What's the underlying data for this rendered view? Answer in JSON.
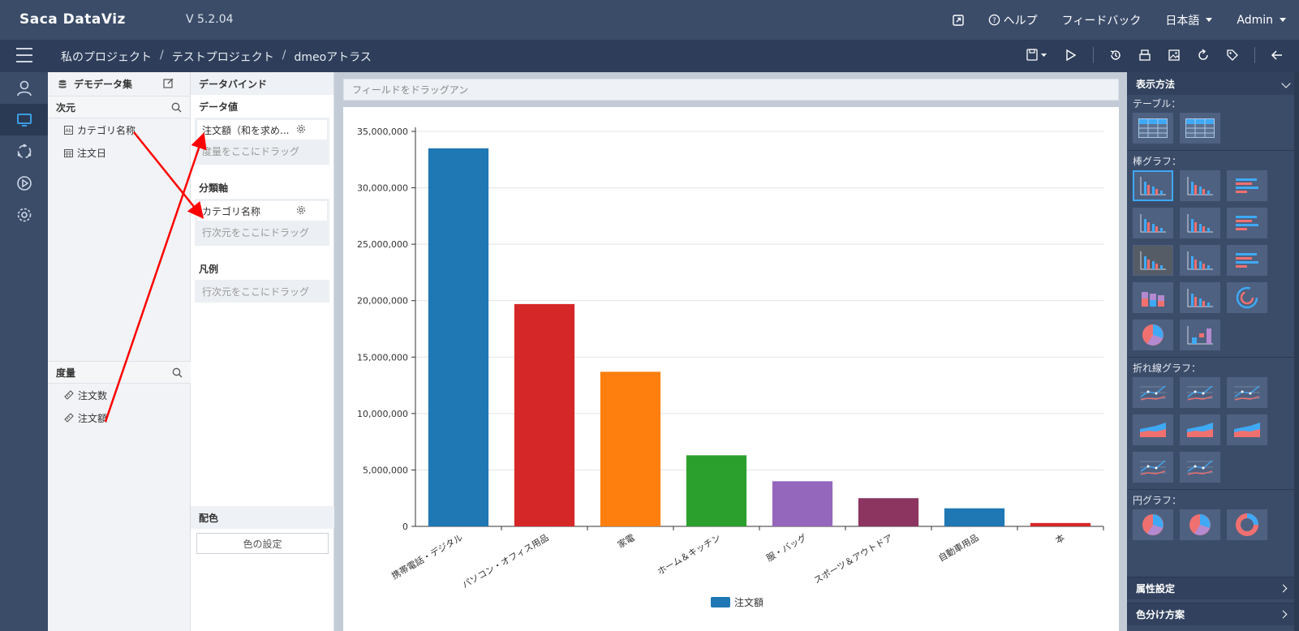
{
  "app": {
    "logo": "Saca DataViz",
    "version": "V 5.2.04",
    "topnav": {
      "help": "ヘルプ",
      "feedback": "フィードバック",
      "language": "日本語",
      "user": "Admin"
    }
  },
  "breadcrumb": [
    "私のプロジェクト",
    "テストプロジェクト",
    "dmeoアトラス"
  ],
  "breadcrumb_sep": "/",
  "dataset": {
    "title": "デモデータ集",
    "dimensions_label": "次元",
    "dimensions": [
      "カテゴリ名称",
      "注文日"
    ],
    "measures_label": "度量",
    "measures": [
      "注文数",
      "注文額"
    ]
  },
  "bind": {
    "title": "データバインド",
    "values_label": "データ値",
    "values_pill": "注文額（和を求め...",
    "values_hint": "度量をここにドラッグ",
    "axis_label": "分類軸",
    "axis_pill": "カテゴリ名称",
    "axis_hint": "行次元をここにドラッグ",
    "legend_label": "凡例",
    "legend_hint": "行次元をここにドラッグ",
    "color_label": "配色",
    "color_button": "色の設定"
  },
  "filterbar": {
    "placeholder": "フィールドをドラッグアン"
  },
  "chart_data": {
    "type": "bar",
    "categories": [
      "携帯電話・デジタル",
      "パソコン・オフィス用品",
      "家電",
      "ホーム＆キッチン",
      "服・バッグ",
      "スポーツ＆アウトドア",
      "自動車用品",
      "本"
    ],
    "values": [
      33500000,
      19700000,
      13700000,
      6300000,
      4000000,
      2500000,
      1600000,
      300000
    ],
    "colors": [
      "#1f77b4",
      "#d62728",
      "#ff7f0e",
      "#2ca02c",
      "#9467bd",
      "#8c3560",
      "#1f77b4",
      "#d62728"
    ],
    "ylim": [
      0,
      35000000
    ],
    "yticks": [
      "0",
      "5,000,000",
      "10,000,000",
      "15,000,000",
      "20,000,000",
      "25,000,000",
      "30,000,000",
      "35,000,000"
    ],
    "grid": true,
    "legend": {
      "position": "bottom",
      "entries": [
        {
          "name": "注文額",
          "color": "#1f77b4"
        }
      ]
    },
    "title": "",
    "xlabel": "",
    "ylabel": ""
  },
  "rightpanel": {
    "title": "表示方法",
    "sections": [
      {
        "label": "テーブル：",
        "count": 2
      },
      {
        "label": "棒グラフ：",
        "count": 14
      },
      {
        "label": "折れ線グラフ：",
        "count": 8
      },
      {
        "label": "円グラフ：",
        "count": 3
      }
    ],
    "attr_settings": "属性設定",
    "color_scheme": "色分け方案"
  }
}
